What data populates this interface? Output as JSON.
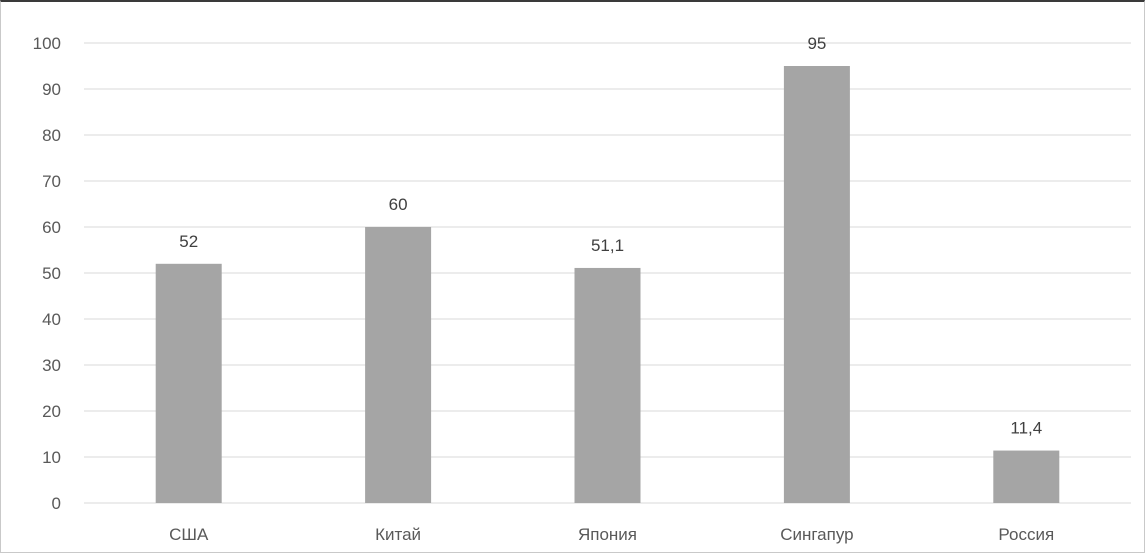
{
  "chart_data": {
    "type": "bar",
    "categories": [
      "США",
      "Китай",
      "Япония",
      "Сингапур",
      "Россия"
    ],
    "values": [
      52,
      60,
      51.1,
      95,
      11.4
    ],
    "value_labels": [
      "52",
      "60",
      "51,1",
      "95",
      "11,4"
    ],
    "y_ticks": [
      "0",
      "10",
      "20",
      "30",
      "40",
      "50",
      "60",
      "70",
      "80",
      "90",
      "100"
    ],
    "ylim": [
      0,
      100
    ],
    "grid": true,
    "legend": "none",
    "bar_color": "#a5a5a5",
    "title": "",
    "xlabel": "",
    "ylabel": ""
  }
}
